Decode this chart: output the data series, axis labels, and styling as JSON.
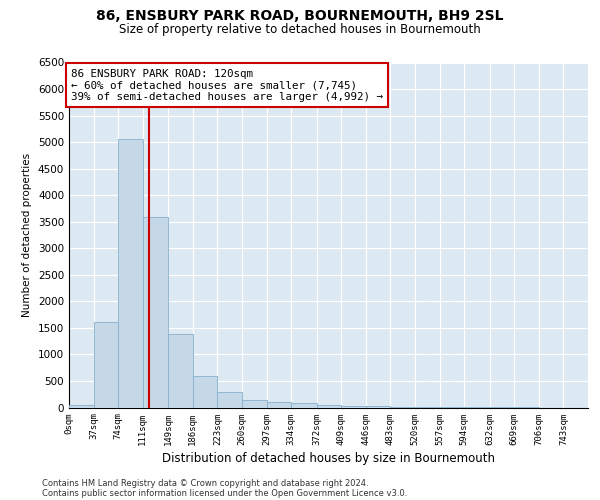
{
  "title": "86, ENSBURY PARK ROAD, BOURNEMOUTH, BH9 2SL",
  "subtitle": "Size of property relative to detached houses in Bournemouth",
  "xlabel": "Distribution of detached houses by size in Bournemouth",
  "ylabel": "Number of detached properties",
  "bar_color": "#c5d8e8",
  "bar_edge_color": "#88b0cc",
  "background_color": "#dce8f2",
  "grid_color": "#ffffff",
  "vline_x": 120,
  "vline_color": "#cc0000",
  "annotation_line1": "86 ENSBURY PARK ROAD: 120sqm",
  "annotation_line2": "← 60% of detached houses are smaller (7,745)",
  "annotation_line3": "39% of semi-detached houses are larger (4,992) →",
  "bin_edges": [
    0,
    37,
    74,
    111,
    149,
    186,
    223,
    260,
    297,
    334,
    372,
    409,
    446,
    483,
    520,
    557,
    594,
    632,
    669,
    706,
    743,
    780
  ],
  "bar_heights": [
    50,
    1620,
    5060,
    3580,
    1390,
    600,
    290,
    145,
    110,
    85,
    50,
    30,
    20,
    10,
    5,
    3,
    2,
    1,
    1,
    0,
    0
  ],
  "tick_labels": [
    "0sqm",
    "37sqm",
    "74sqm",
    "111sqm",
    "149sqm",
    "186sqm",
    "223sqm",
    "260sqm",
    "297sqm",
    "334sqm",
    "372sqm",
    "409sqm",
    "446sqm",
    "483sqm",
    "520sqm",
    "557sqm",
    "594sqm",
    "632sqm",
    "669sqm",
    "706sqm",
    "743sqm"
  ],
  "ylim": [
    0,
    6500
  ],
  "yticks": [
    0,
    500,
    1000,
    1500,
    2000,
    2500,
    3000,
    3500,
    4000,
    4500,
    5000,
    5500,
    6000,
    6500
  ],
  "footer_line1": "Contains HM Land Registry data © Crown copyright and database right 2024.",
  "footer_line2": "Contains public sector information licensed under the Open Government Licence v3.0."
}
